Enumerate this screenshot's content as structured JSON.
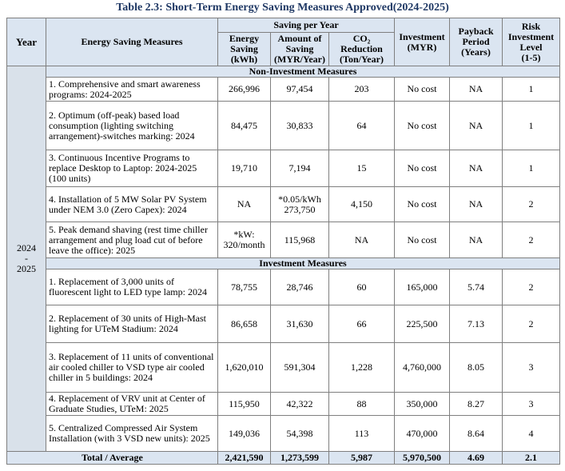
{
  "title": "Table 2.3: Short-Term Energy Saving Measures Approved(2024-2025)",
  "table": {
    "headers": {
      "year": "Year",
      "measures": "Energy Saving Measures",
      "group": "Saving per Year",
      "energy": [
        "Energy",
        "Saving",
        "(kWh)"
      ],
      "amount": [
        "Amount of",
        "Saving",
        "(MYR/Year)"
      ],
      "co2": [
        "CO₂",
        "Reduction",
        "(Ton/Year)"
      ],
      "investment": [
        "Investment",
        "(MYR)"
      ],
      "payback": [
        "Payback",
        "Period",
        "(Years)"
      ],
      "risk": [
        "Risk",
        "Investment",
        "Level",
        "(1-5)"
      ]
    },
    "year": [
      "2024",
      "-",
      "2025"
    ],
    "sections": [
      {
        "title": "Non-Investment Measures",
        "rows": [
          [
            "1. Comprehensive and smart awareness programs: 2024-2025",
            "266,996",
            "97,454",
            "203",
            "No cost",
            "NA",
            "1"
          ],
          [
            "2. Optimum (off-peak) based load consumption (lighting switching arrangement)-switches marking: 2024",
            "84,475",
            "30,833",
            "64",
            "No cost",
            "NA",
            "1"
          ],
          [
            "3. Continuous Incentive Programs to replace Desktop to Laptop: 2024-2025 (100 units)",
            "19,710",
            "7,194",
            "15",
            "No cost",
            "NA",
            "1"
          ],
          [
            "4. Installation of 5 MW Solar PV System under NEM 3.0 (Zero Capex): 2024",
            "NA",
            "*0.05/kWh 273,750",
            "4,150",
            "No cost",
            "NA",
            "2"
          ],
          [
            "5. Peak demand shaving (rest time chiller arrangement and plug load cut of before leave the office): 2025",
            "*kW: 320/month",
            "115,968",
            "NA",
            "No cost",
            "NA",
            "2"
          ]
        ]
      },
      {
        "title": "Investment Measures",
        "rows": [
          [
            "1. Replacement of 3,000 units of fluorescent light to LED type lamp: 2024",
            "78,755",
            "28,746",
            "60",
            "165,000",
            "5.74",
            "2"
          ],
          [
            "2. Replacement of 30 units of High-Mast lighting for UTeM Stadium: 2024",
            "86,658",
            "31,630",
            "66",
            "225,500",
            "7.13",
            "2"
          ],
          [
            "3. Replacement of 11 units of conventional air cooled chiller to VSD type air cooled chiller in 5 buildings: 2024",
            "1,620,010",
            "591,304",
            "1,228",
            "4,760,000",
            "8.05",
            "3"
          ],
          [
            "4. Replacement of VRV unit at Center of Graduate Studies, UTeM: 2025",
            "115,950",
            "42,322",
            "88",
            "350,000",
            "8.27",
            "3"
          ],
          [
            "5. Centralized Compressed Air System Installation (with 3 VSD new units): 2025",
            "149,036",
            "54,398",
            "113",
            "470,000",
            "8.64",
            "4"
          ]
        ]
      }
    ],
    "total": [
      "Total / Average",
      "2,421,590",
      "1,273,599",
      "5,987",
      "5,970,500",
      "4.69",
      "2.1"
    ]
  }
}
